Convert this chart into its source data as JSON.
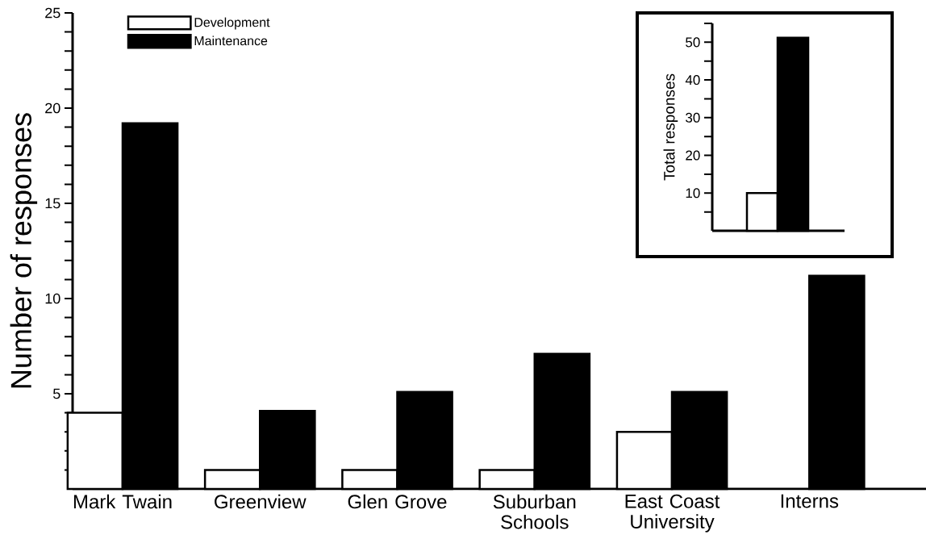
{
  "chart_data": [
    {
      "type": "bar",
      "ylabel": "Number of responses",
      "categories": [
        "Mark Twain",
        "Greenview",
        "Glen Grove",
        "Suburban Schools",
        "East Coast University",
        "Interns"
      ],
      "series": [
        {
          "name": "Development",
          "color": "#ffffff",
          "values": [
            4,
            1,
            1,
            1,
            3,
            null
          ]
        },
        {
          "name": "Maintenance",
          "color": "#000000",
          "values": [
            19.2,
            4.1,
            5.1,
            7.1,
            5.1,
            11.2
          ]
        }
      ],
      "ylim": [
        0,
        25
      ],
      "yticks": [
        {
          "value": 1,
          "label": null
        },
        {
          "value": 2,
          "label": null
        },
        {
          "value": 3,
          "label": null
        },
        {
          "value": 4,
          "label": null
        },
        5,
        {
          "value": 6,
          "label": null
        },
        {
          "value": 7,
          "label": null
        },
        {
          "value": 8,
          "label": null
        },
        {
          "value": 9,
          "label": null
        },
        10,
        {
          "value": 11,
          "label": null
        },
        {
          "value": 12,
          "label": null
        },
        {
          "value": 13,
          "label": null
        },
        {
          "value": 14,
          "label": null
        },
        15,
        {
          "value": 16,
          "label": null
        },
        {
          "value": 17,
          "label": null
        },
        {
          "value": 18,
          "label": null
        },
        {
          "value": 19,
          "label": null
        },
        20,
        {
          "value": 21,
          "label": null
        },
        {
          "value": 22,
          "label": null
        },
        {
          "value": 23,
          "label": null
        },
        {
          "value": 24,
          "label": null
        },
        25
      ],
      "legend": "top left"
    },
    {
      "type": "bar",
      "ylabel": "Total responses",
      "categories": [
        null
      ],
      "series": [
        {
          "color": "#ffffff",
          "values": [
            10
          ]
        },
        {
          "color": "#000000",
          "values": [
            51.2
          ]
        }
      ],
      "ylim": [
        0,
        55
      ],
      "yticks": [
        {
          "value": 5,
          "label": null
        },
        10,
        {
          "value": 15,
          "label": null
        },
        20,
        {
          "value": 25,
          "label": null
        },
        30,
        {
          "value": 35,
          "label": null
        },
        40,
        {
          "value": 45,
          "label": null
        },
        50,
        {
          "value": 55,
          "label": null
        }
      ]
    }
  ]
}
